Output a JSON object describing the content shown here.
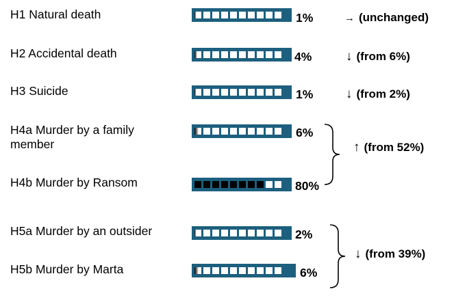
{
  "rows": [
    {
      "label": "H1 Natural death",
      "percent": "1%",
      "fill": 0.01
    },
    {
      "label": "H2 Accidental death",
      "percent": "4%",
      "fill": 0.04
    },
    {
      "label": "H3 Suicide",
      "percent": "1%",
      "fill": 0.01
    },
    {
      "label": "H4a Murder by a family member",
      "percent": "6%",
      "fill": 0.06
    },
    {
      "label": "H4b Murder by Ransom",
      "percent": "80%",
      "fill": 0.8
    },
    {
      "label": "H5a Murder by an outsider",
      "percent": "2%",
      "fill": 0.02
    },
    {
      "label": "H5b Murder by Marta",
      "percent": "6%",
      "fill": 0.06
    }
  ],
  "changes": [
    {
      "arrow": "→",
      "text": "(unchanged)"
    },
    {
      "arrow": "↓",
      "text": "(from 6%)"
    },
    {
      "arrow": "↓",
      "text": "(from 2%)"
    },
    {
      "arrow": "↑",
      "text": "(from 52%)"
    },
    {
      "arrow": "↓",
      "text": "(from 39%)"
    }
  ],
  "colors": {
    "meter": "#1d5f7e",
    "cell_empty": "#ffffff",
    "cell_full": "#000000"
  }
}
